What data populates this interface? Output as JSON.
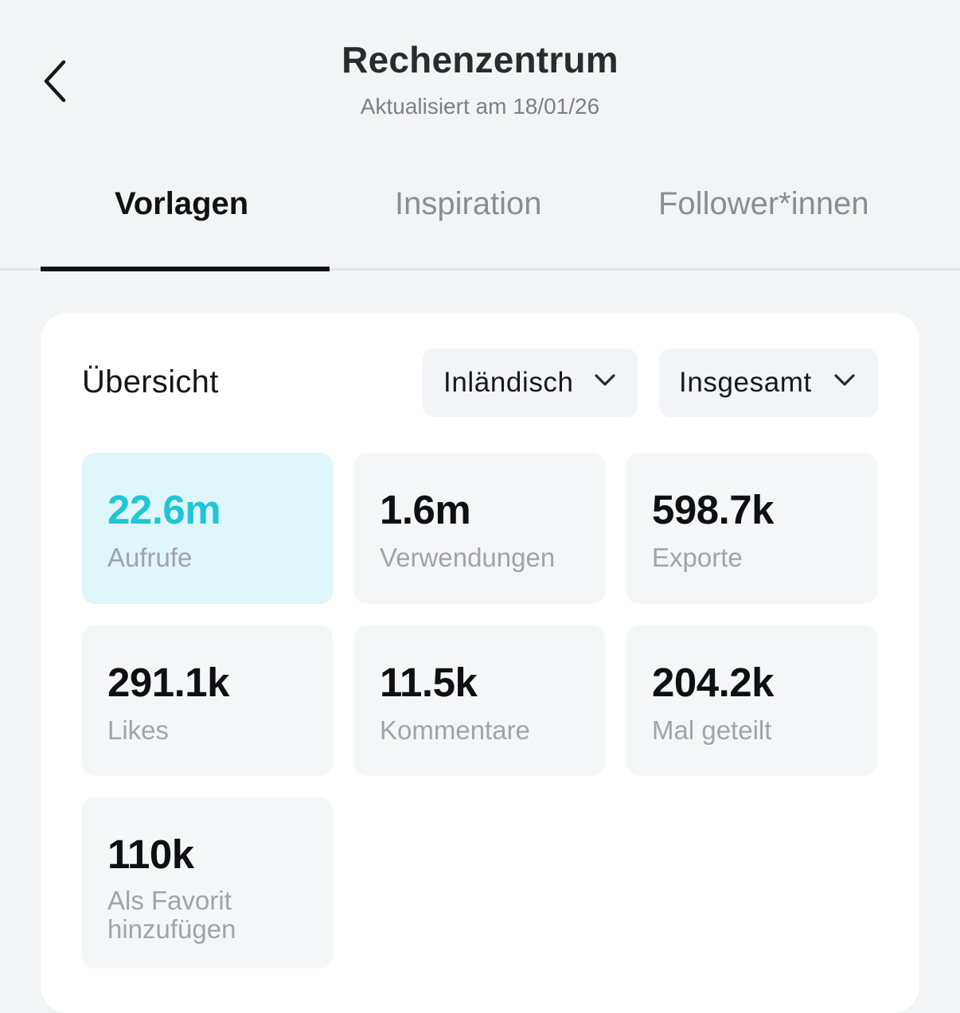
{
  "header": {
    "title": "Rechenzentrum",
    "subtitle": "Aktualisiert am 18/01/26"
  },
  "tabs": [
    {
      "label": "Vorlagen",
      "active": true
    },
    {
      "label": "Inspiration",
      "active": false
    },
    {
      "label": "Follower*innen",
      "active": false
    }
  ],
  "overview": {
    "title": "Übersicht",
    "region_dropdown": "Inländisch",
    "period_dropdown": "Insgesamt"
  },
  "stats": [
    {
      "value": "22.6m",
      "label": "Aufrufe",
      "highlighted": true
    },
    {
      "value": "1.6m",
      "label": "Verwendungen",
      "highlighted": false
    },
    {
      "value": "598.7k",
      "label": "Exporte",
      "highlighted": false
    },
    {
      "value": "291.1k",
      "label": "Likes",
      "highlighted": false
    },
    {
      "value": "11.5k",
      "label": "Kommentare",
      "highlighted": false
    },
    {
      "value": "204.2k",
      "label": "Mal geteilt",
      "highlighted": false
    },
    {
      "value": "110k",
      "label": "Als Favorit hinzufügen",
      "highlighted": false
    }
  ],
  "colors": {
    "accent": "#20c5d6",
    "highlight_background": "#dff6fa",
    "page_background": "#f3f4f6"
  },
  "icons": {
    "back": "chevron-left-icon",
    "dropdown": "chevron-down-icon"
  }
}
